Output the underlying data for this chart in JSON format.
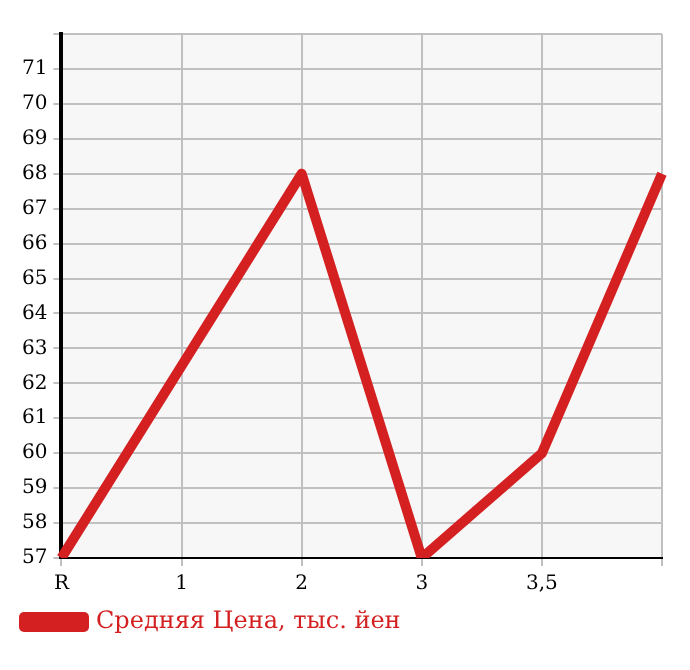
{
  "chart_data": {
    "type": "line",
    "categories": [
      "R",
      "1",
      "2",
      "3",
      "3,5",
      null
    ],
    "series": [
      {
        "name": "Средняя Цена, тыс. йен",
        "color": "#d42020",
        "values": [
          57,
          62.5,
          68,
          57,
          60,
          68
        ]
      }
    ],
    "ylim": [
      57,
      72
    ],
    "yticks": [
      57,
      58,
      59,
      60,
      61,
      62,
      63,
      64,
      65,
      66,
      67,
      68,
      69,
      70,
      71,
      {
        "value": 72,
        "label": null
      }
    ],
    "grid": true,
    "legend": "bottom left",
    "marker": "none",
    "line_style": "solid"
  }
}
